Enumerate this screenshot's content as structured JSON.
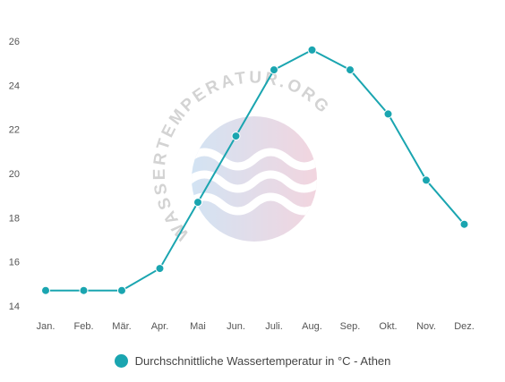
{
  "chart_data": {
    "type": "line",
    "categories": [
      "Jan.",
      "Feb.",
      "Mär.",
      "Apr.",
      "Mai",
      "Jun.",
      "Juli.",
      "Aug.",
      "Sep.",
      "Okt.",
      "Nov.",
      "Dez."
    ],
    "series": [
      {
        "name": "Durchschnittliche Wassertemperatur in °C - Athen",
        "values": [
          14.7,
          14.7,
          14.7,
          15.7,
          18.7,
          21.7,
          24.7,
          25.6,
          24.7,
          22.7,
          19.7,
          17.7
        ]
      }
    ],
    "yticks": [
      14,
      16,
      18,
      20,
      22,
      24,
      26
    ],
    "ylim": [
      14,
      26
    ],
    "grid": false,
    "legend_position": "bottom-center",
    "series_color": "#1aa5b0",
    "watermark_text": "WASSERTEMPERATUR.ORG"
  }
}
